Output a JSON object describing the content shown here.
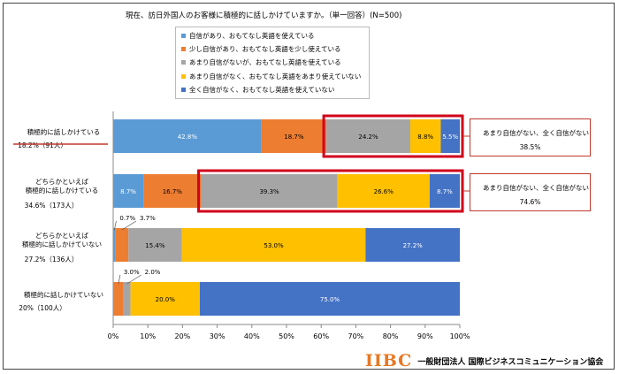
{
  "title": "現在、訪日外国人のお客様に積極的に話しかけていますか。（単一回答）(N=500)",
  "legend": [
    {
      "label": "自信があり、おもてなし英語を使えている",
      "color": "#5b9bd5"
    },
    {
      "label": "少し自信があり、おもてなし英語を少し使えている",
      "color": "#ed7d31"
    },
    {
      "label": "あまり自信がないが、おもてなし英語を使えている",
      "color": "#a5a5a5"
    },
    {
      "label": "あまり自信がなく、おもてなし英語をあまり使えていない",
      "color": "#ffc000"
    },
    {
      "label": "全く自信がなく、おもてなし英語を使えていない",
      "color": "#4472c4"
    }
  ],
  "chart_data": {
    "type": "bar",
    "orientation": "horizontal",
    "stacked": true,
    "title": "現在、訪日外国人のお客様に積極的に話しかけていますか。（単一回答）(N=500)",
    "categories": [
      {
        "label": "積極的に話しかけている",
        "sub": "18.2%（91人）"
      },
      {
        "label": "どちらかといえば\n積極的に話しかけている",
        "sub": "34.6%（173人）"
      },
      {
        "label": "どちらかといえば\n積極的に話しかけていない",
        "sub": "27.2%（136人）"
      },
      {
        "label": "積極的に話しかけていない",
        "sub": "20%（100人）"
      }
    ],
    "series": [
      {
        "name": "自信があり、おもてなし英語を使えている",
        "values": [
          42.8,
          8.7,
          0.7,
          0.0
        ],
        "labels": [
          "42.8%",
          "8.7%",
          "0.7%",
          ""
        ]
      },
      {
        "name": "少し自信があり、おもてなし英語を少し使えている",
        "values": [
          18.7,
          16.7,
          3.7,
          3.0
        ],
        "labels": [
          "18.7%",
          "16.7%",
          "3.7%",
          "3.0%"
        ]
      },
      {
        "name": "あまり自信がないが、おもてなし英語を使えている",
        "values": [
          24.2,
          39.3,
          15.4,
          2.0
        ],
        "labels": [
          "24.2%",
          "39.3%",
          "15.4%",
          "2.0%"
        ]
      },
      {
        "name": "あまり自信がなく、おもてなし英語をあまり使えていない",
        "values": [
          8.8,
          26.6,
          53.0,
          20.0
        ],
        "labels": [
          "8.8%",
          "26.6%",
          "53.0%",
          "20.0%"
        ]
      },
      {
        "name": "全く自信がなく、おもてなし英語を使えていない",
        "values": [
          5.5,
          8.7,
          27.2,
          75.0
        ],
        "labels": [
          "5.5%",
          "8.7%",
          "27.2%",
          "75.0%"
        ]
      }
    ],
    "xlim": [
      0,
      100
    ],
    "xticks": [
      "0%",
      "10%",
      "20%",
      "30%",
      "40%",
      "50%",
      "60%",
      "70%",
      "80%",
      "90%",
      "100%"
    ],
    "legend_position": "top",
    "grid": false
  },
  "callouts": [
    {
      "title": "あまり自信がない、全く自信がない",
      "value": "38.5%",
      "color": "#c0392b"
    },
    {
      "title": "あまり自信がない、全く自信がない",
      "value": "74.6%",
      "color": "#c0392b"
    }
  ],
  "logo": {
    "mark": "IIBC",
    "org": "一般財団法人 国際ビジネスコミュニケーション協会",
    "color": "#e87722"
  }
}
